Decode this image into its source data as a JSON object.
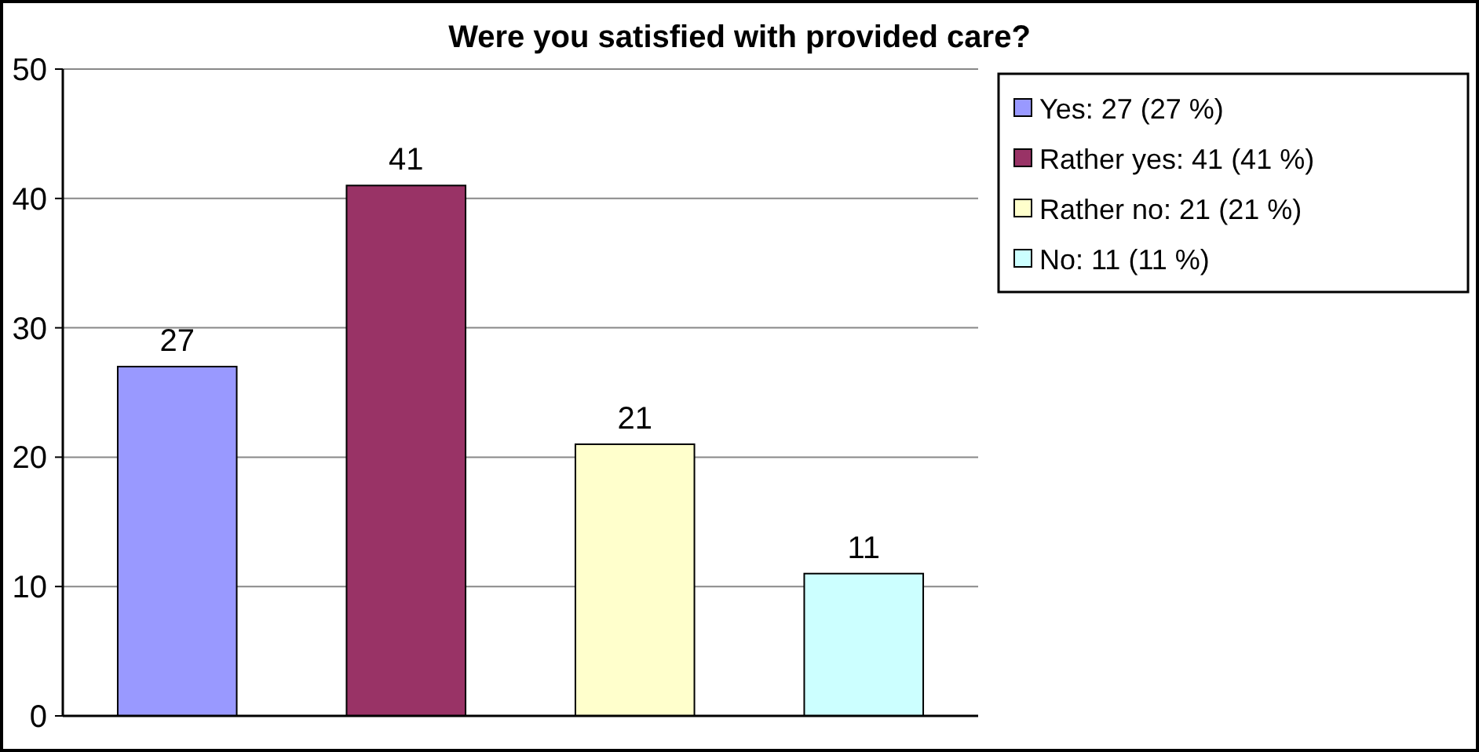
{
  "chart_data": {
    "type": "bar",
    "title": "Were you satisfied with provided care?",
    "categories": [
      null,
      null,
      null,
      null
    ],
    "series": [
      {
        "name": "Yes: 27 (27 %)",
        "color": "#9999ff",
        "values": [
          27,
          null,
          null,
          null
        ]
      },
      {
        "name": "Rather yes: 41 (41 %)",
        "color": "#993366",
        "values": [
          null,
          41,
          null,
          null
        ]
      },
      {
        "name": "Rather no: 21 (21 %)",
        "color": "#ffffcc",
        "values": [
          null,
          null,
          21,
          null
        ]
      },
      {
        "name": "No: 11 (11 %)",
        "color": "#ccffff",
        "values": [
          null,
          null,
          null,
          11
        ]
      }
    ],
    "ylim": [
      0,
      50
    ],
    "yticks": [
      0,
      10,
      20,
      30,
      40,
      50
    ],
    "grid": "y",
    "legend": "right",
    "data_labels": true
  }
}
